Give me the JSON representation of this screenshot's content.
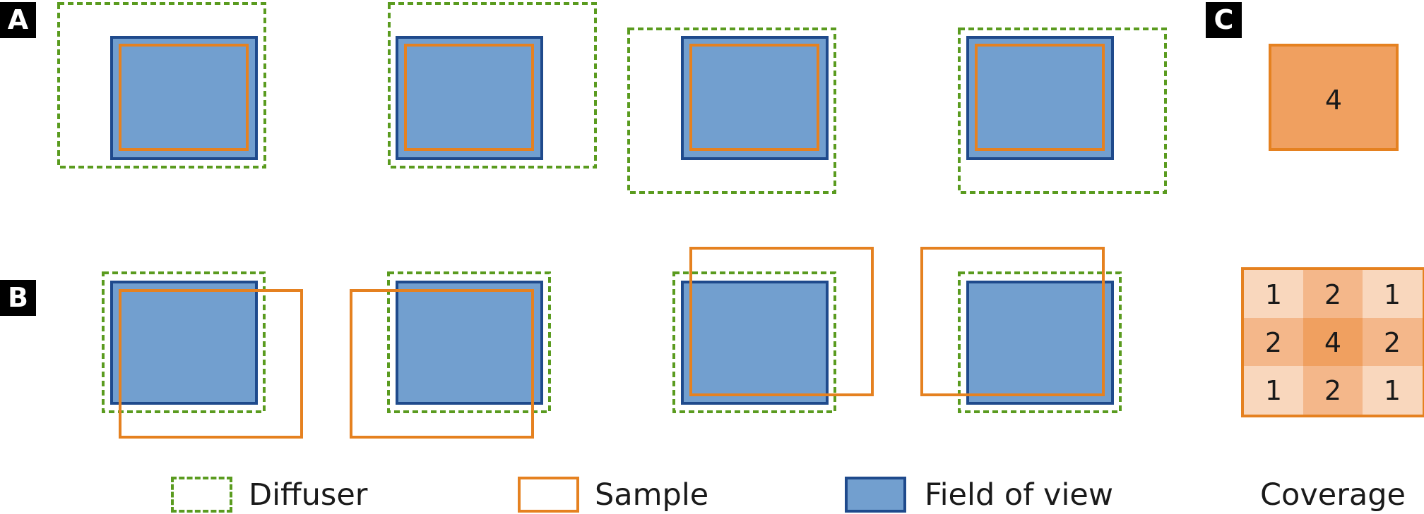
{
  "panels": {
    "a": "A",
    "b": "B",
    "c": "C"
  },
  "colors": {
    "diffuser": "#5a9b1f",
    "sample": "#e58120",
    "fov_fill": "#729fcf",
    "fov_border": "#1f4a8c",
    "coverage_4": "#f0a060",
    "coverage_2": "#f4b78a",
    "coverage_1": "#f9d7bd"
  },
  "coverage_single": {
    "value": "4"
  },
  "coverage_grid": {
    "rows": [
      [
        "1",
        "2",
        "1"
      ],
      [
        "2",
        "4",
        "2"
      ],
      [
        "1",
        "2",
        "1"
      ]
    ]
  },
  "legend": {
    "diffuser": "Diffuser",
    "sample": "Sample",
    "field_of_view": "Field of view",
    "coverage": "Coverage"
  }
}
